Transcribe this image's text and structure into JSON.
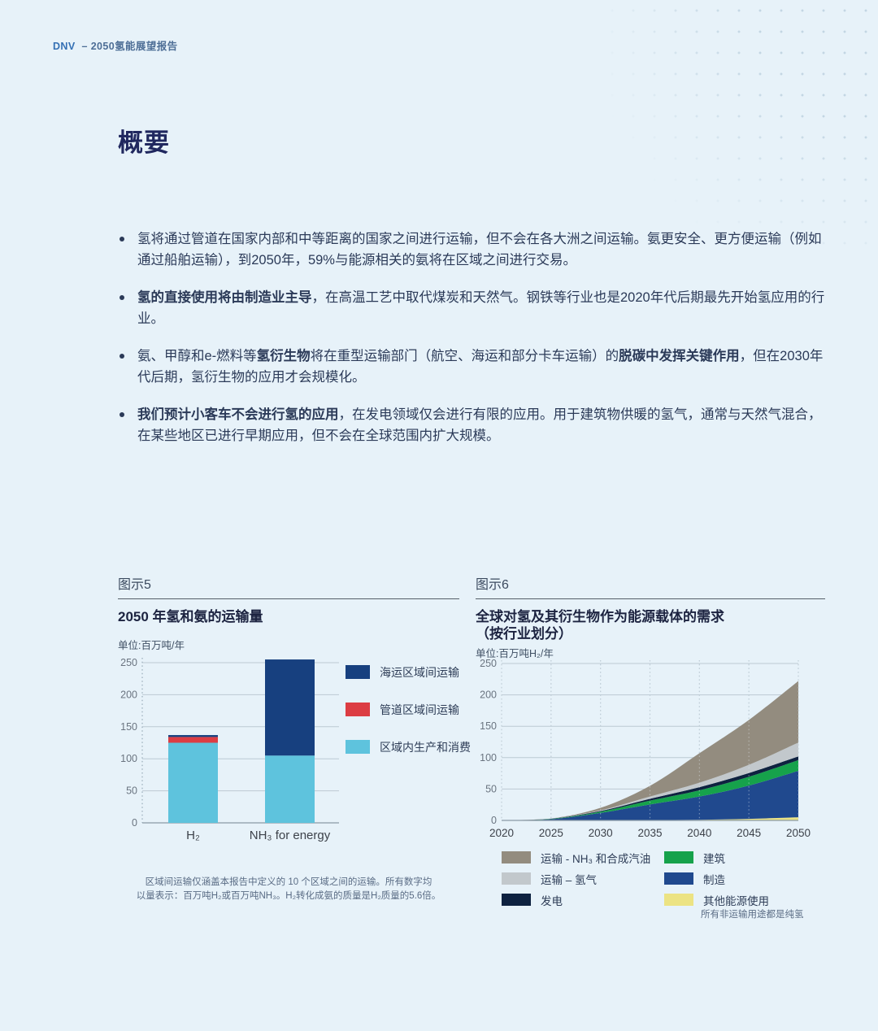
{
  "header": {
    "brand": "DNV",
    "title": "– 2050氢能展望报告"
  },
  "summary": {
    "title": "概要",
    "bullets": [
      {
        "segments": [
          {
            "text": "氢将通过管道在国家内部和中等距离的国家之间进行运输，但不会在各大洲之间运输。氨更安全、更方便运输（例如通过船舶运输），到2050年，59%与能源相关的氨将在区域之间进行交易。",
            "bold": false
          }
        ]
      },
      {
        "segments": [
          {
            "text": "氢的直接使用将由制造业主导",
            "bold": true
          },
          {
            "text": "，在高温工艺中取代煤炭和天然气。钢铁等行业也是2020年代后期最先开始氢应用的行业。",
            "bold": false
          }
        ]
      },
      {
        "segments": [
          {
            "text": "氨、甲醇和e-燃料等",
            "bold": false
          },
          {
            "text": "氢衍生物",
            "bold": true
          },
          {
            "text": "将在重型运输部门（航空、海运和部分卡车运输）的",
            "bold": false
          },
          {
            "text": "脱碳中发挥关键作用",
            "bold": true
          },
          {
            "text": "，但在2030年代后期，氢衍生物的应用才会规模化。",
            "bold": false
          }
        ]
      },
      {
        "segments": [
          {
            "text": "我们预计小客车不会进行氢的应用",
            "bold": true
          },
          {
            "text": "，在发电领域仅会进行有限的应用。用于建筑物供暖的氢气，通常与天然气混合，在某些地区已进行早期应用，但不会在全球范围内扩大规模。",
            "bold": false
          }
        ]
      }
    ]
  },
  "figures": {
    "fig5": {
      "label": "图示5",
      "footnote_lines": [
        "区域间运输仅涵盖本报告中定义的 10 个区域之间的运输。所有数字均",
        "以量表示：百万吨H₂或百万吨NH₃。H₂转化成氨的质量是H₂质量的5.6倍。"
      ]
    },
    "fig6": {
      "label": "图示6",
      "footnote": "所有非运输用途都是纯氢"
    }
  },
  "chart_data": [
    {
      "type": "bar",
      "title": "2050 年氢和氨的运输量",
      "unit": "单位:百万吨/年",
      "categories": [
        "H₂",
        "NH₃ for energy"
      ],
      "series": [
        {
          "name": "海运区域间运输",
          "color": "#17407f",
          "values": [
            3,
            150
          ]
        },
        {
          "name": "管道区域间运输",
          "color": "#dc3d43",
          "values": [
            9,
            0
          ]
        },
        {
          "name": "区域内生产和消费",
          "color": "#5ec3dd",
          "values": [
            125,
            105
          ]
        }
      ],
      "stack_note": "series listed top-to-bottom of stack",
      "ylim": [
        0,
        250
      ],
      "yticks": [
        0,
        50,
        100,
        150,
        200,
        250
      ],
      "legend_position": "right",
      "grid": "horizontal"
    },
    {
      "type": "area",
      "title_lines": [
        "全球对氢及其衍生物作为能源载体的需求",
        "（按行业划分）"
      ],
      "unit": "单位:百万吨H₂/年",
      "x": [
        2020,
        2025,
        2030,
        2035,
        2040,
        2045,
        2050
      ],
      "xticklabels": [
        "2020",
        "2025",
        "2030",
        "2035",
        "2040",
        "2045",
        "2050"
      ],
      "series": [
        {
          "name": "运输 - NH₃ 和合成汽油",
          "color": "#938c7f",
          "values": [
            0,
            0,
            4,
            17,
            47,
            71.5,
            98
          ]
        },
        {
          "name": "运输 – 氢气",
          "color": "#c2c8cc",
          "values": [
            0,
            0.2,
            1,
            3.5,
            7,
            13,
            22
          ]
        },
        {
          "name": "发电",
          "color": "#0e2240",
          "values": [
            0,
            0.3,
            1,
            3,
            5,
            6,
            6
          ]
        },
        {
          "name": "建筑",
          "color": "#16a24b",
          "values": [
            0,
            0.5,
            2,
            6,
            10,
            14,
            17
          ]
        },
        {
          "name": "制造",
          "color": "#20498e",
          "values": [
            0,
            2,
            12,
            25,
            37,
            53,
            74
          ]
        },
        {
          "name": "其他能源使用",
          "color": "#ece383",
          "values": [
            0,
            0,
            0,
            0.5,
            1,
            2.5,
            5
          ]
        }
      ],
      "stack_note": "series listed top-to-bottom of stack; totals 2050 ≈ 222",
      "ylim": [
        0,
        250
      ],
      "yticks": [
        0,
        50,
        100,
        150,
        200,
        250
      ],
      "legend_position": "bottom",
      "grid": "both"
    }
  ]
}
